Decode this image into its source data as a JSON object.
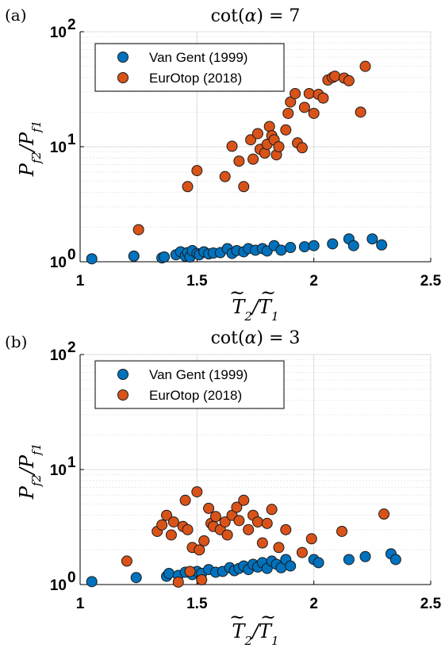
{
  "colors": {
    "van_gent": "#0072BD",
    "eurotop": "#D95319",
    "grid": "#dcdcdc",
    "axis": "#000000"
  },
  "chart_data": [
    {
      "type": "scatter",
      "panel": "(a)",
      "title": "cot(α) = 7",
      "xlabel": "T̃₂/T̃₁",
      "ylabel": "Pf2/Pf1",
      "xlim": [
        1,
        2.5
      ],
      "ylim": [
        1,
        100
      ],
      "yscale": "log",
      "x_ticks": [
        "1",
        "1.5",
        "2",
        "2.5"
      ],
      "y_ticks": [
        {
          "base": "10",
          "exp": "0"
        },
        {
          "base": "10",
          "exp": "1"
        },
        {
          "base": "10",
          "exp": "2"
        }
      ],
      "grid": true,
      "legend_position": "top-left",
      "series": [
        {
          "name": "Van Gent (1999)",
          "color": "#0072BD",
          "x": [
            1.05,
            1.23,
            1.35,
            1.36,
            1.41,
            1.43,
            1.45,
            1.46,
            1.47,
            1.48,
            1.5,
            1.51,
            1.53,
            1.55,
            1.57,
            1.6,
            1.63,
            1.65,
            1.67,
            1.7,
            1.72,
            1.75,
            1.78,
            1.8,
            1.83,
            1.86,
            1.9,
            1.96,
            2.0,
            2.08,
            2.15,
            2.17,
            2.25,
            2.29
          ],
          "y": [
            1.06,
            1.12,
            1.08,
            1.1,
            1.15,
            1.22,
            1.12,
            1.2,
            1.1,
            1.25,
            1.18,
            1.15,
            1.22,
            1.17,
            1.19,
            1.2,
            1.3,
            1.18,
            1.25,
            1.22,
            1.3,
            1.26,
            1.3,
            1.24,
            1.38,
            1.26,
            1.33,
            1.35,
            1.38,
            1.43,
            1.58,
            1.38,
            1.58,
            1.4
          ]
        },
        {
          "name": "EurOtop (2018)",
          "color": "#D95319",
          "x": [
            1.25,
            1.46,
            1.5,
            1.62,
            1.65,
            1.68,
            1.7,
            1.73,
            1.74,
            1.76,
            1.77,
            1.79,
            1.8,
            1.81,
            1.82,
            1.83,
            1.84,
            1.85,
            1.88,
            1.89,
            1.9,
            1.92,
            1.93,
            1.95,
            1.96,
            1.98,
            2.0,
            2.02,
            2.04,
            2.06,
            2.08,
            2.09,
            2.13,
            2.15,
            2.2,
            2.22
          ],
          "y": [
            1.9,
            4.5,
            6.2,
            5.5,
            10.1,
            7.5,
            4.5,
            11.5,
            7.8,
            13.0,
            9.5,
            8.8,
            10.5,
            15.0,
            12.5,
            11.5,
            8.5,
            10.0,
            14.0,
            19.5,
            24.5,
            29.0,
            10.8,
            9.8,
            22.0,
            29.0,
            19.5,
            28.5,
            26.5,
            38.0,
            40.0,
            41.0,
            39.5,
            37.5,
            20.0,
            50.0
          ]
        }
      ]
    },
    {
      "type": "scatter",
      "panel": "(b)",
      "title": "cot(α) = 3",
      "xlabel": "T̃₂/T̃₁",
      "ylabel": "Pf2/Pf1",
      "xlim": [
        1,
        2.5
      ],
      "ylim": [
        1,
        100
      ],
      "yscale": "log",
      "x_ticks": [
        "1",
        "1.5",
        "2",
        "2.5"
      ],
      "y_ticks": [
        {
          "base": "10",
          "exp": "0"
        },
        {
          "base": "10",
          "exp": "1"
        },
        {
          "base": "10",
          "exp": "2"
        }
      ],
      "grid": true,
      "legend_position": "top-left",
      "series": [
        {
          "name": "Van Gent (1999)",
          "color": "#0072BD",
          "x": [
            1.05,
            1.24,
            1.37,
            1.38,
            1.42,
            1.45,
            1.48,
            1.5,
            1.52,
            1.55,
            1.58,
            1.61,
            1.64,
            1.66,
            1.68,
            1.7,
            1.72,
            1.74,
            1.76,
            1.78,
            1.8,
            1.82,
            1.84,
            1.86,
            1.88,
            1.9,
            2.0,
            2.02,
            2.15,
            2.22,
            2.33,
            2.35
          ],
          "y": [
            1.06,
            1.15,
            1.18,
            1.25,
            1.2,
            1.28,
            1.22,
            1.3,
            1.25,
            1.35,
            1.28,
            1.3,
            1.4,
            1.32,
            1.38,
            1.45,
            1.35,
            1.5,
            1.42,
            1.55,
            1.38,
            1.6,
            1.5,
            1.4,
            1.65,
            1.45,
            1.65,
            1.55,
            1.65,
            1.75,
            1.85,
            1.65
          ]
        },
        {
          "name": "EurOtop (2018)",
          "color": "#D95319",
          "x": [
            1.2,
            1.33,
            1.35,
            1.37,
            1.39,
            1.4,
            1.42,
            1.44,
            1.45,
            1.46,
            1.47,
            1.48,
            1.5,
            1.51,
            1.52,
            1.53,
            1.55,
            1.56,
            1.57,
            1.58,
            1.6,
            1.62,
            1.63,
            1.65,
            1.67,
            1.68,
            1.7,
            1.72,
            1.74,
            1.76,
            1.78,
            1.8,
            1.82,
            1.85,
            1.88,
            1.95,
            1.99,
            2.12,
            2.3
          ],
          "y": [
            1.6,
            2.9,
            3.3,
            4.0,
            2.7,
            3.5,
            1.05,
            3.2,
            5.4,
            3.0,
            1.3,
            2.1,
            6.4,
            2.0,
            1.1,
            2.4,
            4.6,
            3.4,
            3.2,
            3.9,
            3.0,
            3.5,
            2.7,
            4.0,
            4.7,
            3.6,
            5.4,
            3.0,
            4.0,
            3.5,
            2.3,
            3.4,
            4.5,
            2.1,
            3.0,
            1.9,
            2.5,
            2.9,
            4.1
          ]
        }
      ]
    }
  ]
}
